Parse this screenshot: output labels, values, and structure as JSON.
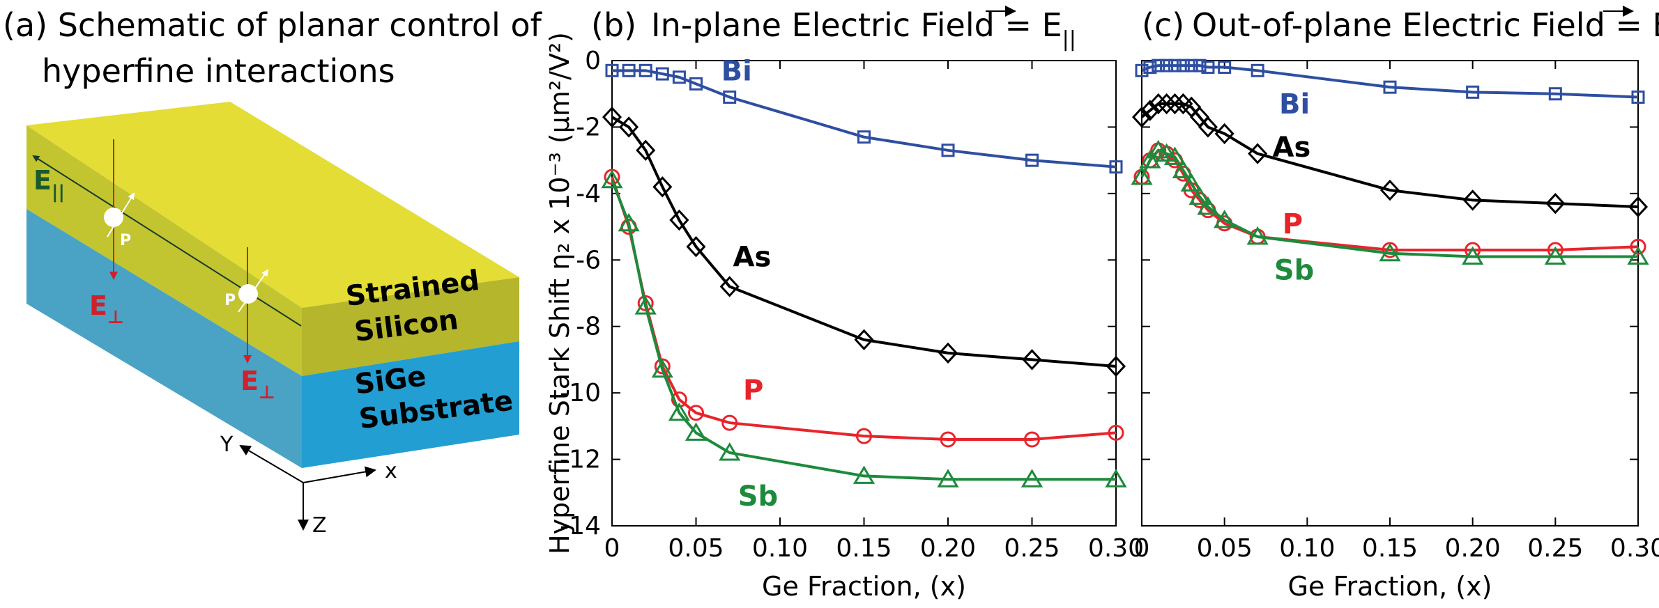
{
  "panel_a": {
    "title_line1": "(a) Schematic of planar control of",
    "title_line2": "hyperfine interactions",
    "e_par": "E",
    "e_par_sub": "||",
    "e_perp": "E",
    "e_perp_sub": "⊥",
    "donor": "P",
    "layer_top_1": "Strained",
    "layer_top_2": "Silicon",
    "layer_bottom_1": "SiGe",
    "layer_bottom_2": "Substrate",
    "axis_x": "x",
    "axis_y": "Y",
    "axis_z": "Z",
    "colors": {
      "top_face": "#e3dd35",
      "front_top": "#c2c530",
      "side_top": "#b5b62c",
      "front_bottom": "#239ed2",
      "side_bottom": "#4aa3c5"
    }
  },
  "panel_b": {
    "letter": "(b)",
    "title": "In-plane Electric Field = E",
    "title_sub": "||"
  },
  "panel_c": {
    "letter": "(c)",
    "title": "Out-of-plane Electric Field = E",
    "title_sub": "⊥"
  },
  "chart_data": [
    {
      "type": "line",
      "title": "In-plane Electric Field = E||",
      "xlabel": "Ge Fraction, (x)",
      "ylabel": "Hyperfine Stark Shift η₂ x 10⁻³ (μm²/V²)",
      "xlim": [
        0,
        0.3
      ],
      "ylim": [
        -14,
        0
      ],
      "xticks": [
        0,
        0.05,
        0.1,
        0.15,
        0.2,
        0.25,
        0.3
      ],
      "xtick_labels": [
        "0",
        "0.05",
        "0.10",
        "0.15",
        "0.20",
        "0.25",
        "0.30"
      ],
      "yticks": [
        0,
        -2,
        -4,
        -6,
        -8,
        -10,
        -12,
        -14
      ],
      "ytick_labels": [
        "0",
        "-2",
        "-4",
        "-6",
        "-8",
        "-10",
        "-12",
        "-14"
      ],
      "x": [
        0,
        0.01,
        0.02,
        0.03,
        0.04,
        0.05,
        0.07,
        0.15,
        0.2,
        0.25,
        0.3
      ],
      "series": [
        {
          "name": "Bi",
          "color": "#2e4ea2",
          "marker": "square",
          "label_at": [
            0.065,
            -0.3
          ],
          "values": [
            -0.3,
            -0.3,
            -0.3,
            -0.4,
            -0.5,
            -0.7,
            -1.1,
            -2.3,
            -2.7,
            -3.0,
            -3.2
          ]
        },
        {
          "name": "As",
          "color": "#000000",
          "marker": "diamond",
          "label_at": [
            0.072,
            -5.9
          ],
          "values": [
            -1.7,
            -2.0,
            -2.7,
            -3.8,
            -4.8,
            -5.6,
            -6.8,
            -8.4,
            -8.8,
            -9.0,
            -9.2
          ]
        },
        {
          "name": "P",
          "color": "#e8242b",
          "marker": "circle",
          "label_at": [
            0.078,
            -9.9
          ],
          "values": [
            -3.5,
            -5.0,
            -7.3,
            -9.2,
            -10.2,
            -10.6,
            -10.9,
            -11.3,
            -11.4,
            -11.4,
            -11.2
          ]
        },
        {
          "name": "Sb",
          "color": "#1d8a3c",
          "marker": "triangle",
          "label_at": [
            0.075,
            -13.1
          ],
          "values": [
            -3.6,
            -4.9,
            -7.4,
            -9.3,
            -10.6,
            -11.2,
            -11.8,
            -12.5,
            -12.6,
            -12.6,
            -12.6
          ]
        }
      ]
    },
    {
      "type": "line",
      "title": "Out-of-plane Electric Field = E⊥",
      "xlabel": "Ge Fraction, (x)",
      "xlim": [
        0,
        0.3
      ],
      "ylim": [
        -14,
        0
      ],
      "xticks": [
        0,
        0.05,
        0.1,
        0.15,
        0.2,
        0.25,
        0.3
      ],
      "xtick_labels": [
        "0",
        "0.05",
        "0.10",
        "0.15",
        "0.20",
        "0.25",
        "0.30"
      ],
      "x": [
        0,
        0.005,
        0.01,
        0.015,
        0.02,
        0.025,
        0.03,
        0.035,
        0.04,
        0.05,
        0.07,
        0.15,
        0.2,
        0.25,
        0.3
      ],
      "series": [
        {
          "name": "Bi",
          "color": "#2e4ea2",
          "marker": "square",
          "label_at": [
            0.083,
            -1.3
          ],
          "values": [
            -0.3,
            -0.2,
            -0.15,
            -0.15,
            -0.15,
            -0.15,
            -0.15,
            -0.15,
            -0.2,
            -0.2,
            -0.3,
            -0.8,
            -0.95,
            -1.0,
            -1.1
          ]
        },
        {
          "name": "As",
          "color": "#000000",
          "marker": "diamond",
          "label_at": [
            0.079,
            -2.6
          ],
          "values": [
            -1.7,
            -1.5,
            -1.3,
            -1.3,
            -1.3,
            -1.3,
            -1.4,
            -1.7,
            -2.0,
            -2.2,
            -2.8,
            -3.9,
            -4.2,
            -4.3,
            -4.4
          ]
        },
        {
          "name": "P",
          "color": "#e8242b",
          "marker": "circle",
          "label_at": [
            0.085,
            -4.9
          ],
          "values": [
            -3.5,
            -3.0,
            -2.7,
            -2.8,
            -3.0,
            -3.4,
            -3.9,
            -4.2,
            -4.5,
            -4.9,
            -5.3,
            -5.7,
            -5.7,
            -5.7,
            -5.6
          ]
        },
        {
          "name": "Sb",
          "color": "#1d8a3c",
          "marker": "triangle",
          "label_at": [
            0.08,
            -6.3
          ],
          "values": [
            -3.5,
            -3.0,
            -2.7,
            -2.8,
            -2.9,
            -3.3,
            -3.7,
            -4.1,
            -4.4,
            -4.8,
            -5.3,
            -5.8,
            -5.9,
            -5.9,
            -5.9
          ]
        }
      ]
    }
  ]
}
